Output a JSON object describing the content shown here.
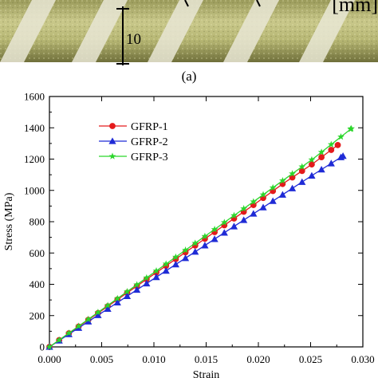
{
  "panel_a_label": "(a)",
  "photo": {
    "dimension_label": "10",
    "unit_label": "[mm]"
  },
  "colors": {
    "GFRP-1": "#e41a1c",
    "GFRP-2": "#1f2bd6",
    "GFRP-3": "#2bd62b"
  },
  "chart_data": {
    "type": "line",
    "title": "",
    "xlabel": "Strain",
    "ylabel": "Stress (MPa)",
    "xlim": [
      0,
      0.03
    ],
    "ylim": [
      0,
      1600
    ],
    "xticks": [
      "0.000",
      "0.005",
      "0.010",
      "0.015",
      "0.020",
      "0.025",
      "0.030"
    ],
    "yticks": [
      "0",
      "200",
      "400",
      "600",
      "800",
      "1000",
      "1200",
      "1400",
      "1600"
    ],
    "legend_position": "top-left",
    "series": [
      {
        "name": "GFRP-1",
        "marker": "circle",
        "x": [
          0,
          0.0028,
          0.0056,
          0.0084,
          0.0112,
          0.014,
          0.0168,
          0.0196,
          0.0224,
          0.0252,
          0.0276
        ],
        "y": [
          0,
          130,
          260,
          390,
          520,
          650,
          780,
          910,
          1045,
          1170,
          1290
        ]
      },
      {
        "name": "GFRP-2",
        "marker": "triangle",
        "x": [
          0,
          0.0028,
          0.0056,
          0.0084,
          0.0112,
          0.014,
          0.0168,
          0.0196,
          0.0224,
          0.0252,
          0.0281
        ],
        "y": [
          0,
          122,
          244,
          366,
          488,
          610,
          732,
          854,
          976,
          1098,
          1220
        ]
      },
      {
        "name": "GFRP-3",
        "marker": "star",
        "x": [
          0,
          0.0028,
          0.0056,
          0.0084,
          0.0112,
          0.014,
          0.0168,
          0.0196,
          0.0224,
          0.0252,
          0.0289
        ],
        "y": [
          0,
          133,
          266,
          399,
          532,
          665,
          798,
          931,
          1066,
          1200,
          1395
        ]
      }
    ]
  }
}
